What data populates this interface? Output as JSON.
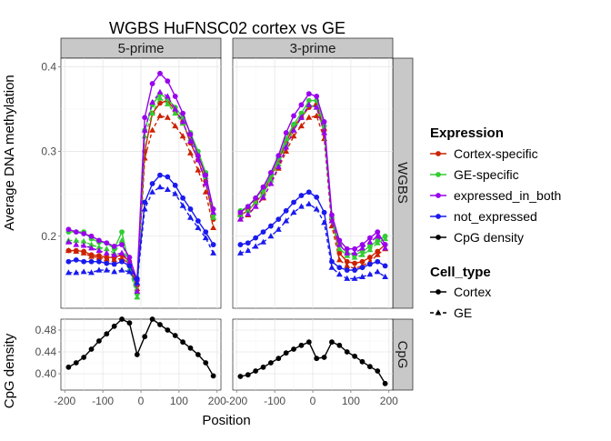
{
  "chart_data": {
    "type": "line",
    "title": "WGBS HuFNSC02 cortex vs GE",
    "xlabel": "Position",
    "ylabel_top": "Average DNA methylation",
    "ylabel_bottom": "CpG density",
    "col_facets": [
      "5-prime",
      "3-prime"
    ],
    "row_facets": [
      "WGBS",
      "CpG"
    ],
    "x_ticks": [
      -200,
      -100,
      0,
      100,
      200
    ],
    "xlim": [
      -210,
      210
    ],
    "grid": true,
    "legend_position": "right",
    "top_ylim": [
      0.115,
      0.41
    ],
    "top_yticks": [
      0.2,
      0.3,
      0.4
    ],
    "top_ytick_labels": [
      "0.2",
      "0.3",
      "0.4"
    ],
    "bottom_ylim": [
      0.37,
      0.5
    ],
    "bottom_yticks": [
      0.4,
      0.44,
      0.48
    ],
    "bottom_ytick_labels": [
      "0.40",
      "0.44",
      "0.48"
    ],
    "legend": {
      "expression_title": "Expression",
      "expression": [
        {
          "name": "Cortex-specific",
          "color": "#cc2200"
        },
        {
          "name": "GE-specific",
          "color": "#33cc33"
        },
        {
          "name": "expressed_in_both",
          "color": "#9900ee"
        },
        {
          "name": "not_expressed",
          "color": "#1a1aee"
        },
        {
          "name": "CpG density",
          "color": "#000000"
        }
      ],
      "cell_type_title": "Cell_type",
      "cell_type": [
        {
          "name": "Cortex",
          "linetype": "solid",
          "shape": "circle"
        },
        {
          "name": "GE",
          "linetype": "dashed",
          "shape": "triangle"
        }
      ]
    },
    "x": [
      -190,
      -170,
      -150,
      -130,
      -110,
      -90,
      -70,
      -50,
      -30,
      -10,
      10,
      30,
      50,
      70,
      90,
      110,
      130,
      150,
      170,
      190
    ],
    "panels": {
      "5-prime": {
        "series": [
          {
            "expression": "Cortex-specific",
            "cell_type": "Cortex",
            "values": [
              0.183,
              0.183,
              0.182,
              0.178,
              0.177,
              0.175,
              0.175,
              0.178,
              0.17,
              0.142,
              0.3,
              0.345,
              0.357,
              0.36,
              0.348,
              0.335,
              0.31,
              0.29,
              0.265,
              0.22
            ]
          },
          {
            "expression": "Cortex-specific",
            "cell_type": "GE",
            "values": [
              0.183,
              0.182,
              0.18,
              0.176,
              0.175,
              0.173,
              0.172,
              0.174,
              0.167,
              0.138,
              0.292,
              0.325,
              0.342,
              0.34,
              0.33,
              0.318,
              0.298,
              0.278,
              0.252,
              0.21
            ]
          },
          {
            "expression": "GE-specific",
            "cell_type": "Cortex",
            "values": [
              0.205,
              0.205,
              0.205,
              0.197,
              0.193,
              0.192,
              0.185,
              0.205,
              0.165,
              0.132,
              0.325,
              0.355,
              0.368,
              0.362,
              0.352,
              0.34,
              0.322,
              0.3,
              0.275,
              0.225
            ]
          },
          {
            "expression": "GE-specific",
            "cell_type": "GE",
            "values": [
              0.195,
              0.195,
              0.194,
              0.19,
              0.187,
              0.185,
              0.18,
              0.195,
              0.161,
              0.128,
              0.318,
              0.345,
              0.363,
              0.356,
              0.345,
              0.333,
              0.315,
              0.296,
              0.27,
              0.222
            ]
          },
          {
            "expression": "expressed_in_both",
            "cell_type": "Cortex",
            "values": [
              0.208,
              0.205,
              0.203,
              0.2,
              0.195,
              0.192,
              0.188,
              0.19,
              0.175,
              0.148,
              0.34,
              0.38,
              0.392,
              0.383,
              0.365,
              0.345,
              0.32,
              0.295,
              0.272,
              0.232
            ]
          },
          {
            "expression": "expressed_in_both",
            "cell_type": "GE",
            "values": [
              0.193,
              0.19,
              0.189,
              0.186,
              0.183,
              0.18,
              0.178,
              0.18,
              0.17,
              0.135,
              0.325,
              0.358,
              0.37,
              0.365,
              0.35,
              0.335,
              0.312,
              0.29,
              0.262,
              0.228
            ]
          },
          {
            "expression": "not_expressed",
            "cell_type": "Cortex",
            "values": [
              0.17,
              0.172,
              0.17,
              0.17,
              0.17,
              0.168,
              0.167,
              0.17,
              0.165,
              0.15,
              0.24,
              0.262,
              0.272,
              0.27,
              0.26,
              0.245,
              0.232,
              0.218,
              0.205,
              0.19
            ]
          },
          {
            "expression": "not_expressed",
            "cell_type": "GE",
            "values": [
              0.157,
              0.157,
              0.158,
              0.157,
              0.16,
              0.16,
              0.158,
              0.16,
              0.158,
              0.145,
              0.232,
              0.252,
              0.258,
              0.255,
              0.25,
              0.236,
              0.222,
              0.21,
              0.198,
              0.18
            ]
          }
        ],
        "cpg_density": [
          0.412,
          0.42,
          0.43,
          0.445,
          0.46,
          0.473,
          0.487,
          0.5,
          0.493,
          0.435,
          0.468,
          0.5,
          0.49,
          0.48,
          0.47,
          0.458,
          0.447,
          0.435,
          0.42,
          0.396
        ]
      },
      "3-prime": {
        "series": [
          {
            "expression": "Cortex-specific",
            "cell_type": "Cortex",
            "values": [
              0.225,
              0.23,
              0.24,
              0.25,
              0.27,
              0.29,
              0.31,
              0.33,
              0.34,
              0.352,
              0.355,
              0.325,
              0.22,
              0.18,
              0.17,
              0.168,
              0.17,
              0.175,
              0.182,
              0.19
            ]
          },
          {
            "expression": "Cortex-specific",
            "cell_type": "GE",
            "values": [
              0.22,
              0.225,
              0.235,
              0.245,
              0.262,
              0.28,
              0.3,
              0.318,
              0.33,
              0.34,
              0.342,
              0.315,
              0.212,
              0.172,
              0.165,
              0.162,
              0.165,
              0.17,
              0.178,
              0.185
            ]
          },
          {
            "expression": "GE-specific",
            "cell_type": "Cortex",
            "values": [
              0.23,
              0.235,
              0.245,
              0.255,
              0.272,
              0.292,
              0.315,
              0.332,
              0.345,
              0.36,
              0.36,
              0.33,
              0.222,
              0.19,
              0.18,
              0.178,
              0.182,
              0.188,
              0.195,
              0.2
            ]
          },
          {
            "expression": "GE-specific",
            "cell_type": "GE",
            "values": [
              0.225,
              0.23,
              0.24,
              0.25,
              0.266,
              0.285,
              0.308,
              0.325,
              0.34,
              0.355,
              0.352,
              0.322,
              0.218,
              0.185,
              0.177,
              0.175,
              0.178,
              0.184,
              0.192,
              0.197
            ]
          },
          {
            "expression": "expressed_in_both",
            "cell_type": "Cortex",
            "values": [
              0.228,
              0.235,
              0.245,
              0.258,
              0.275,
              0.295,
              0.322,
              0.342,
              0.355,
              0.368,
              0.365,
              0.335,
              0.225,
              0.195,
              0.185,
              0.185,
              0.19,
              0.198,
              0.205,
              0.19
            ]
          },
          {
            "expression": "expressed_in_both",
            "cell_type": "GE",
            "values": [
              0.22,
              0.226,
              0.235,
              0.246,
              0.262,
              0.282,
              0.305,
              0.325,
              0.34,
              0.355,
              0.352,
              0.322,
              0.218,
              0.19,
              0.18,
              0.18,
              0.186,
              0.193,
              0.2,
              0.186
            ]
          },
          {
            "expression": "not_expressed",
            "cell_type": "Cortex",
            "values": [
              0.19,
              0.192,
              0.198,
              0.205,
              0.212,
              0.22,
              0.23,
              0.24,
              0.248,
              0.252,
              0.246,
              0.228,
              0.17,
              0.163,
              0.16,
              0.16,
              0.163,
              0.167,
              0.17,
              0.165
            ]
          },
          {
            "expression": "not_expressed",
            "cell_type": "GE",
            "values": [
              0.18,
              0.183,
              0.188,
              0.193,
              0.2,
              0.208,
              0.218,
              0.228,
              0.235,
              0.238,
              0.232,
              0.216,
              0.163,
              0.155,
              0.15,
              0.15,
              0.152,
              0.155,
              0.158,
              0.152
            ]
          }
        ],
        "cpg_density": [
          0.395,
          0.398,
          0.405,
          0.412,
          0.42,
          0.428,
          0.438,
          0.445,
          0.452,
          0.458,
          0.428,
          0.43,
          0.458,
          0.452,
          0.44,
          0.432,
          0.422,
          0.413,
          0.405,
          0.382
        ]
      }
    }
  }
}
